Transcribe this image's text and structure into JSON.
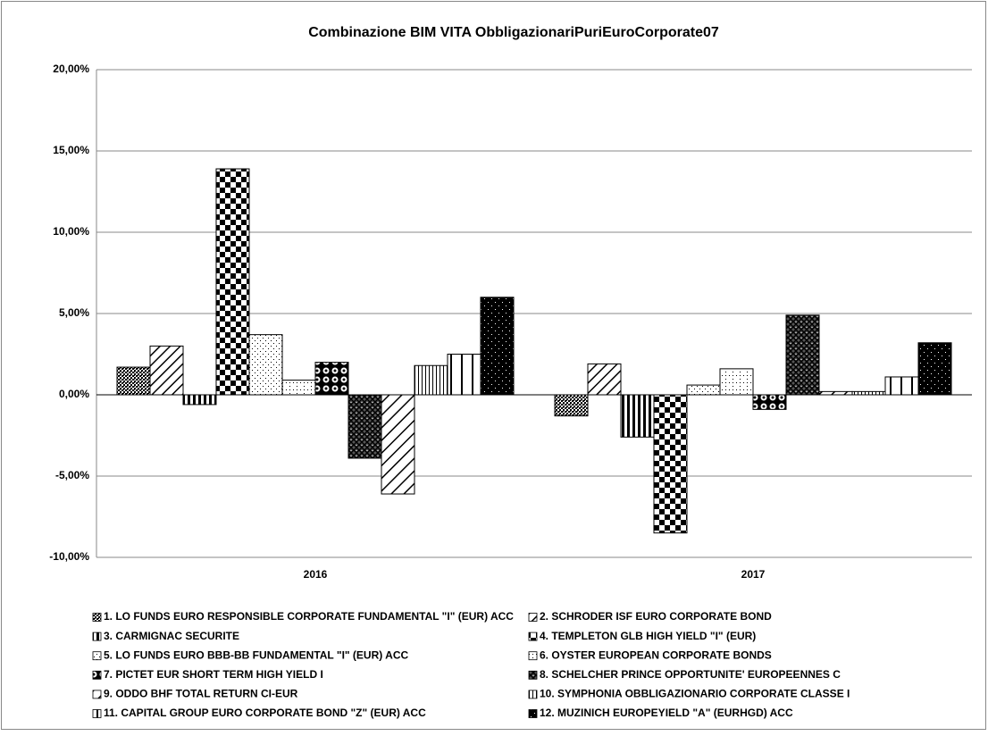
{
  "chart_data": {
    "type": "bar",
    "title": "Combinazione BIM VITA ObbligazionariPuriEuroCorporate07",
    "categories": [
      "2016",
      "2017"
    ],
    "ylim": [
      -10,
      20
    ],
    "yticks": [
      {
        "value": -10,
        "label": "-10,00%"
      },
      {
        "value": -5,
        "label": "-5,00%"
      },
      {
        "value": 0,
        "label": "0,00%"
      },
      {
        "value": 5,
        "label": "5,00%"
      },
      {
        "value": 10,
        "label": "10,00%"
      },
      {
        "value": 15,
        "label": "15,00%"
      },
      {
        "value": 20,
        "label": "20,00%"
      }
    ],
    "grid": true,
    "legend": "bottom",
    "series": [
      {
        "name": "1. LO FUNDS EURO RESPONSIBLE CORPORATE FUNDAMENTAL \"I\" (EUR) ACC",
        "color": "#000000",
        "pattern": "p1",
        "values": [
          1.7,
          -1.3
        ]
      },
      {
        "name": "2. SCHRODER ISF EURO CORPORATE BOND",
        "color": "#000000",
        "pattern": "p2",
        "values": [
          3.0,
          1.9
        ]
      },
      {
        "name": "3. CARMIGNAC SECURITE",
        "color": "#000000",
        "pattern": "p3",
        "values": [
          -0.6,
          -2.6
        ]
      },
      {
        "name": "4. TEMPLETON GLB HIGH YIELD \"I\" (EUR)",
        "color": "#000000",
        "pattern": "p4",
        "values": [
          13.9,
          -8.5
        ]
      },
      {
        "name": "5. LO FUNDS EURO BBB-BB FUNDAMENTAL \"I\" (EUR) ACC",
        "color": "#000000",
        "pattern": "p5",
        "values": [
          3.7,
          0.6
        ]
      },
      {
        "name": "6. OYSTER EUROPEAN CORPORATE BONDS",
        "color": "#000000",
        "pattern": "p6",
        "values": [
          0.9,
          1.6
        ]
      },
      {
        "name": "7. PICTET EUR SHORT TERM HIGH YIELD I",
        "color": "#000000",
        "pattern": "p7",
        "values": [
          2.0,
          -0.9
        ]
      },
      {
        "name": "8. SCHELCHER PRINCE OPPORTUNITE' EUROPEENNES C",
        "color": "#000000",
        "pattern": "p8",
        "values": [
          -3.9,
          4.9
        ]
      },
      {
        "name": "9. ODDO BHF TOTAL RETURN CI-EUR",
        "color": "#000000",
        "pattern": "p9",
        "values": [
          -6.1,
          0.2
        ]
      },
      {
        "name": "10. SYMPHONIA OBBLIGAZIONARIO CORPORATE CLASSE I",
        "color": "#000000",
        "pattern": "p10",
        "values": [
          1.8,
          0.2
        ]
      },
      {
        "name": "11. CAPITAL GROUP EURO CORPORATE BOND \"Z\" (EUR) ACC",
        "color": "#000000",
        "pattern": "p11",
        "values": [
          2.5,
          1.1
        ]
      },
      {
        "name": "12. MUZINICH EUROPEYIELD \"A\" (EURHGD) ACC",
        "color": "#000000",
        "pattern": "p12",
        "values": [
          6.0,
          3.2
        ]
      }
    ]
  }
}
